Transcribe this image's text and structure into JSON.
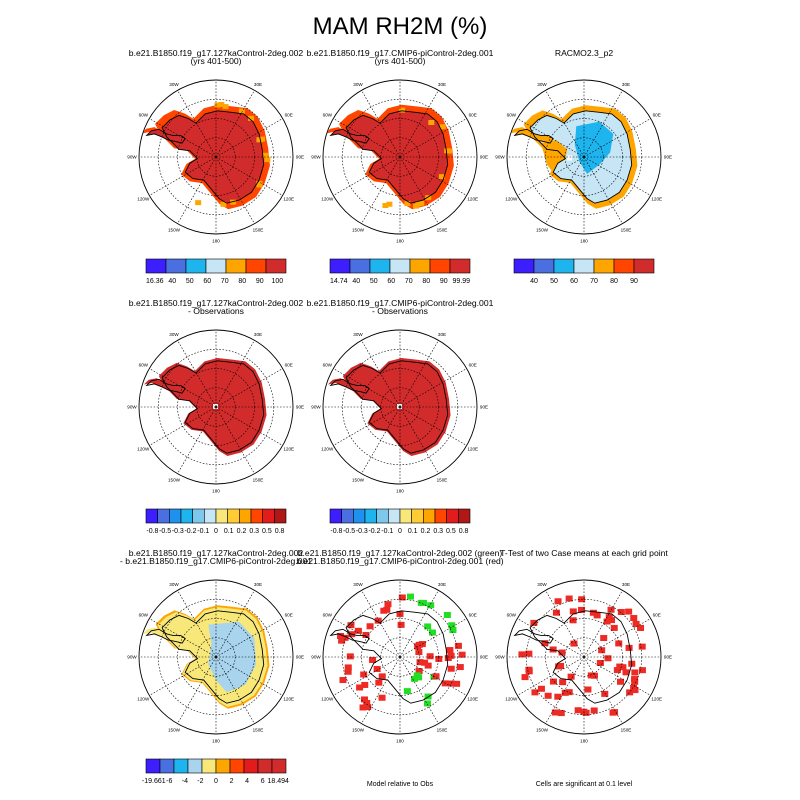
{
  "title": "MAM RH2M (%)",
  "colors": {
    "red_dark": "#d22b2b",
    "red": "#ee2a24",
    "orange_red": "#ff4500",
    "orange": "#ffa500",
    "light_blue": "#c6e6f5",
    "cyan": "#1eb4ee",
    "blue": "#4a6fe0",
    "indigo": "#3d1eff",
    "yellow": "#f8e87a",
    "sky": "#a8d4ee",
    "green": "#22dd22"
  },
  "lon_labels": [
    "30W",
    "30E",
    "60W",
    "60E",
    "90W",
    "90E",
    "120W",
    "120E",
    "150W",
    "150E",
    "180"
  ],
  "panels": [
    {
      "title_line1": "b.e21.B1850.f19_g17.127kaControl-2deg.002",
      "title_line2": "(yrs 401-500)",
      "colorbar_ticks": [
        "16.36",
        "40",
        "50",
        "60",
        "70",
        "80",
        "90",
        "100"
      ],
      "note": ""
    },
    {
      "title_line1": "b.e21.B1850.f19_g17.CMIP6-piControl-2deg.001",
      "title_line2": "(yrs 401-500)",
      "colorbar_ticks": [
        "14.74",
        "40",
        "50",
        "60",
        "70",
        "80",
        "90",
        "99.99"
      ],
      "note": ""
    },
    {
      "title_line1": "RACMO2.3_p2",
      "title_line2": "",
      "colorbar_ticks": [
        "40",
        "50",
        "60",
        "70",
        "80",
        "90"
      ],
      "note": ""
    },
    {
      "title_line1": "b.e21.B1850.f19_g17.127kaControl-2deg.002",
      "title_line2": "- Observations",
      "colorbar_ticks": [
        "-0.8",
        "-0.5",
        "-0.3",
        "-0.2",
        "-0.1",
        "0",
        "0.1",
        "0.2",
        "0.3",
        "0.5",
        "0.8"
      ],
      "note": ""
    },
    {
      "title_line1": "b.e21.B1850.f19_g17.CMIP6-piControl-2deg.001",
      "title_line2": "- Observations",
      "colorbar_ticks": [
        "-0.8",
        "-0.5",
        "-0.3",
        "-0.2",
        "-0.1",
        "0",
        "0.1",
        "0.2",
        "0.3",
        "0.5",
        "0.8"
      ],
      "note": ""
    },
    {
      "title_line1": "b.e21.B1850.f19_g17.127kaControl-2deg.002",
      "title_line2": "- b.e21.B1850.f19_g17.CMIP6-piControl-2deg.001",
      "colorbar_ticks": [
        "-19.661",
        "-6",
        "-4",
        "-2",
        "0",
        "2",
        "4",
        "6",
        "18.494"
      ],
      "note": ""
    },
    {
      "title_line1": "b.e21.B1850.f19_g17.127kaControl-2deg.002 (green)",
      "title_line2": "b.e21.B1850.f19_g17.CMIP6-piControl-2deg.001 (red)",
      "colorbar_ticks": [],
      "note": "Model relative to Obs"
    },
    {
      "title_line1": "T-Test of two Case means at each grid point",
      "title_line2": "",
      "colorbar_ticks": [],
      "note": "Cells are significant at 0.1 level"
    }
  ]
}
